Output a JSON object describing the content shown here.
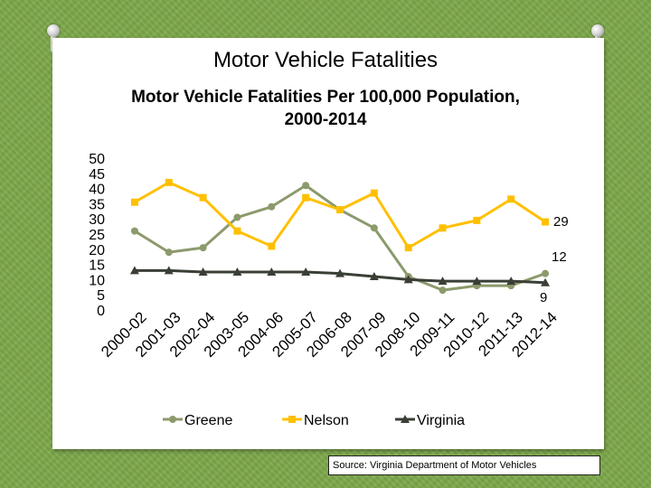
{
  "slide": {
    "title": "Motor Vehicle Fatalities",
    "source": "Source: Virginia Department of Motor Vehicles"
  },
  "chart_data": {
    "type": "line",
    "title": "Motor Vehicle Fatalities Per 100,000 Population, 2000-2014",
    "title_lines": [
      "Motor Vehicle Fatalities Per 100,000 Population,",
      "2000-2014"
    ],
    "xlabel": "",
    "ylabel": "",
    "categories": [
      "2000-02",
      "2001-03",
      "2002-04",
      "2003-05",
      "2004-06",
      "2005-07",
      "2006-08",
      "2007-09",
      "2008-10",
      "2009-11",
      "2010-12",
      "2011-13",
      "2012-14"
    ],
    "yticks": [
      0,
      5,
      10,
      15,
      20,
      25,
      30,
      35,
      40,
      45,
      50
    ],
    "ylim": [
      0,
      50
    ],
    "grid": false,
    "legend_position": "bottom",
    "series": [
      {
        "name": "Greene",
        "color": "#8c9a6c",
        "marker": "circle",
        "values": [
          26,
          19,
          20.5,
          30.5,
          34,
          41,
          33,
          27,
          11,
          6.5,
          8,
          8,
          12
        ],
        "end_label": "12"
      },
      {
        "name": "Nelson",
        "color": "#ffc000",
        "marker": "square",
        "values": [
          35.5,
          42,
          37,
          26,
          21,
          37,
          33,
          38.5,
          20.5,
          27,
          29.5,
          36.5,
          29
        ],
        "end_label": "29"
      },
      {
        "name": "Virginia",
        "color": "#3a3f36",
        "marker": "triangle",
        "values": [
          13,
          13,
          12.5,
          12.5,
          12.5,
          12.5,
          12,
          11,
          10,
          9.5,
          9.5,
          9.5,
          9
        ],
        "end_label": "9"
      }
    ]
  }
}
